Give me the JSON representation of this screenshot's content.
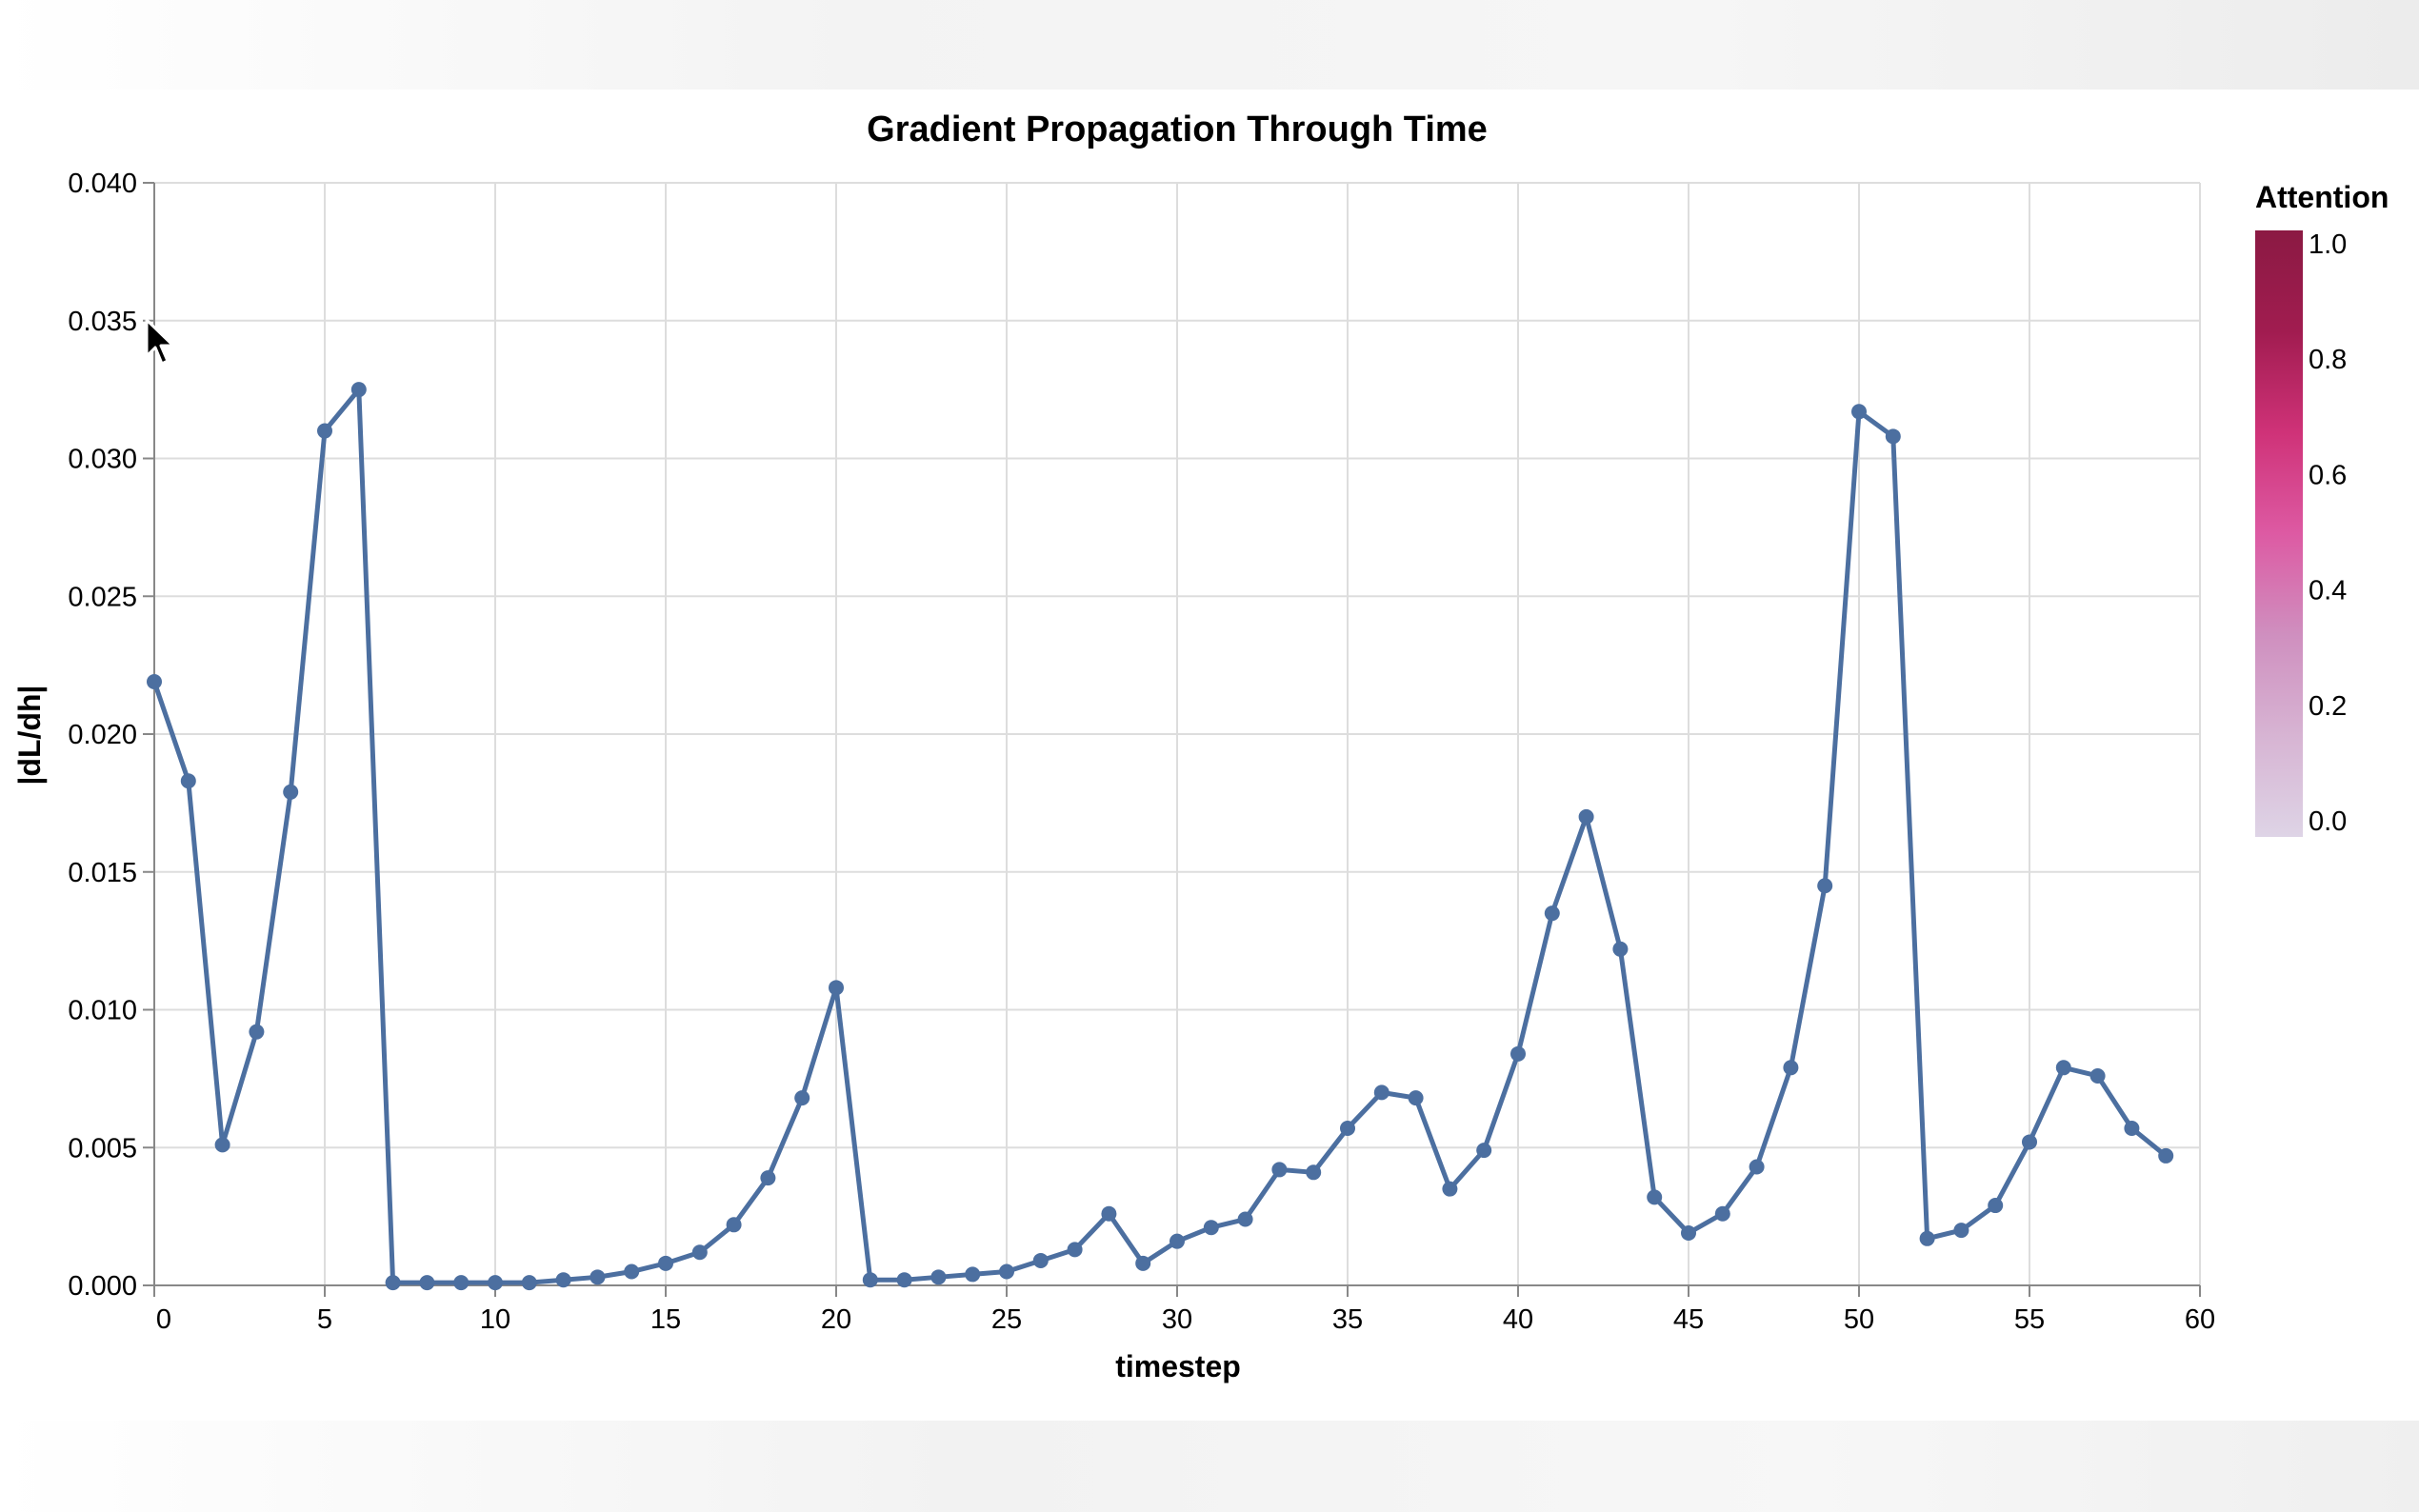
{
  "colors": {
    "line": "#4c6fa0",
    "grid": "#dddddd",
    "axis": "#888888",
    "text": "#000000",
    "legend_gradient": [
      "#ded4e6",
      "#d7b4d3",
      "#cf8fbf",
      "#dd5aa3",
      "#cf3278",
      "#a11c50",
      "#8b1a43"
    ]
  },
  "chart_data": {
    "type": "line",
    "title": "Gradient Propagation Through Time",
    "xlabel": "timestep",
    "ylabel": "|dL/dh|",
    "xlim": [
      0,
      60
    ],
    "ylim": [
      0,
      0.04
    ],
    "x_ticks": [
      "0",
      "5",
      "10",
      "15",
      "20",
      "25",
      "30",
      "35",
      "40",
      "45",
      "50",
      "55",
      "60"
    ],
    "y_ticks": [
      "0.000",
      "0.005",
      "0.010",
      "0.015",
      "0.020",
      "0.025",
      "0.030",
      "0.035",
      "0.040"
    ],
    "grid": true,
    "markers": true,
    "x": [
      0,
      1,
      2,
      3,
      4,
      5,
      6,
      7,
      8,
      9,
      10,
      11,
      12,
      13,
      14,
      15,
      16,
      17,
      18,
      19,
      20,
      21,
      22,
      23,
      24,
      25,
      26,
      27,
      28,
      29,
      30,
      31,
      32,
      33,
      34,
      35,
      36,
      37,
      38,
      39,
      40,
      41,
      42,
      43,
      44,
      45,
      46,
      47,
      48,
      49,
      50,
      51,
      52,
      53,
      54,
      55,
      56,
      57,
      58,
      59
    ],
    "y": [
      0.0219,
      0.0183,
      0.0051,
      0.0092,
      0.0179,
      0.031,
      0.0325,
      0.0001,
      0.0001,
      0.0001,
      0.0001,
      0.0001,
      0.0002,
      0.0003,
      0.0005,
      0.0008,
      0.0012,
      0.0022,
      0.0039,
      0.0068,
      0.0108,
      0.0002,
      0.0002,
      0.0003,
      0.0004,
      0.0005,
      0.0009,
      0.0013,
      0.0026,
      0.0008,
      0.0016,
      0.0021,
      0.0024,
      0.0042,
      0.0041,
      0.0057,
      0.007,
      0.0068,
      0.0035,
      0.0049,
      0.0084,
      0.0135,
      0.017,
      0.0122,
      0.0032,
      0.0019,
      0.0026,
      0.0043,
      0.0079,
      0.0145,
      0.0317,
      0.0308,
      0.0017,
      0.002,
      0.0029,
      0.0052,
      0.0079,
      0.0076,
      0.0057,
      0.0047
    ],
    "legend": {
      "title": "Attention",
      "placement": "right",
      "range": [
        0,
        1
      ],
      "ticks": [
        "1.0",
        "0.8",
        "0.6",
        "0.4",
        "0.2",
        "0.0"
      ]
    }
  }
}
